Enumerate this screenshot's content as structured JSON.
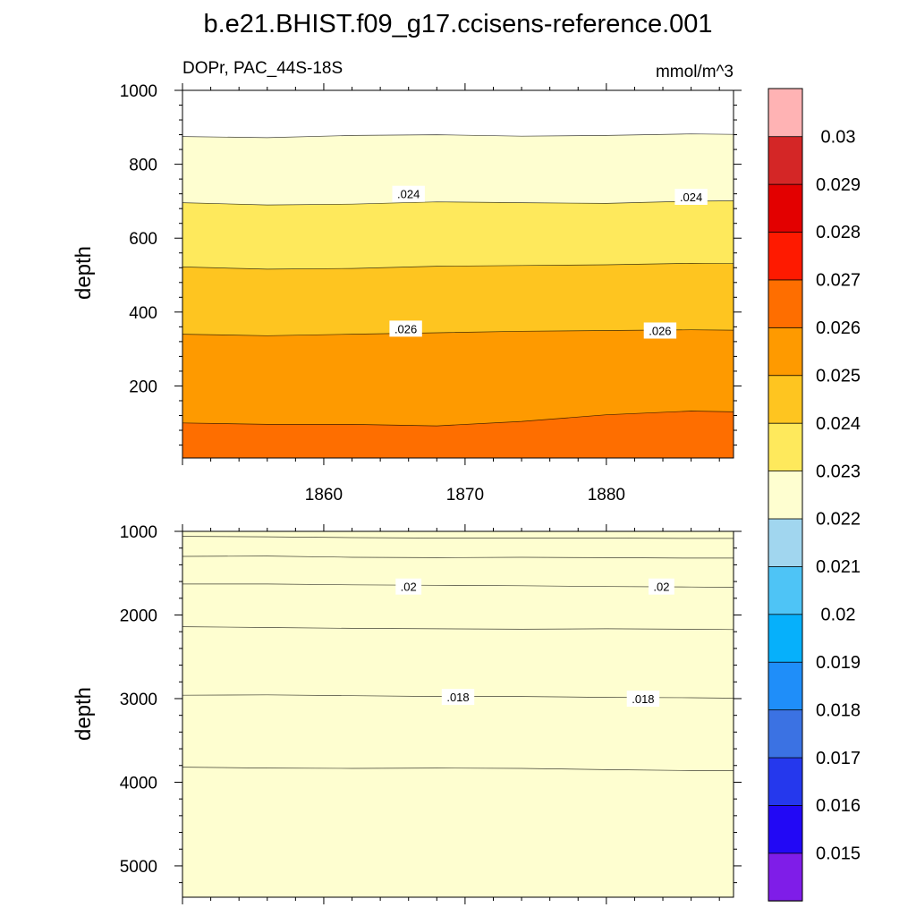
{
  "title": "b.e21.BHIST.f09_g17.ccisens-reference.001",
  "subtitle_left": "DOPr, PAC_44S-18S",
  "subtitle_right": "mmol/m^3",
  "colorbar": {
    "colors": [
      "#7f1de8",
      "#2208f5",
      "#2538ed",
      "#3b72e3",
      "#1f8ef9",
      "#06b0fb",
      "#4ec4f6",
      "#a1d6ef",
      "#fefed0",
      "#fee95c",
      "#fec520",
      "#fe9a00",
      "#fe6e00",
      "#fe1a00",
      "#e30000",
      "#d42626",
      "#ffb3b4"
    ],
    "labels": [
      "0.015",
      "0.016",
      "0.017",
      "0.018",
      "0.019",
      "0.02",
      "0.021",
      "0.022",
      "0.023",
      "0.024",
      "0.025",
      "0.026",
      "0.027",
      "0.028",
      "0.029",
      "0.03"
    ]
  },
  "chart_data": [
    {
      "type": "contour",
      "panel": "upper",
      "xlabel": "",
      "ylabel": "depth",
      "x_ticks": [
        1860,
        1870,
        1880
      ],
      "xlim": [
        1850,
        1889
      ],
      "y_ticks": [
        200,
        400,
        600,
        800,
        1000
      ],
      "ylim": [
        1000,
        5
      ],
      "y_inverted": true,
      "x": [
        1850,
        1856,
        1862,
        1868,
        1874,
        1880,
        1886,
        1889
      ],
      "bands": [
        {
          "color": "#fefed0",
          "value_range": [
            0.022,
            0.023
          ],
          "top": [
            875,
            872,
            878,
            880,
            876,
            878,
            882,
            881
          ]
        },
        {
          "color": "#fee95c",
          "value_range": [
            0.023,
            0.024
          ],
          "top": [
            696,
            690,
            692,
            698,
            696,
            694,
            700,
            701
          ]
        },
        {
          "color": "#fec520",
          "value_range": [
            0.024,
            0.025
          ],
          "top": [
            522,
            516,
            518,
            524,
            526,
            528,
            532,
            531
          ]
        },
        {
          "color": "#fe9a00",
          "value_range": [
            0.025,
            0.026
          ],
          "top": [
            340,
            336,
            340,
            344,
            348,
            350,
            352,
            351
          ]
        },
        {
          "color": "#fe6e00",
          "value_range": [
            0.026,
            0.027
          ],
          "top": [
            100,
            96,
            96,
            92,
            104,
            122,
            132,
            130
          ]
        },
        {
          "color": "#fe1a00",
          "value_range": [
            0.027,
            0.028
          ],
          "top": [
            5,
            5,
            5,
            5,
            5,
            5,
            5,
            5
          ]
        }
      ],
      "contour_labels": [
        {
          "text": ".026",
          "x": 1865.8,
          "y": 355
        },
        {
          "text": ".026",
          "x": 1883.8,
          "y": 350
        },
        {
          "text": ".024",
          "x": 1866.0,
          "y": 720
        },
        {
          "text": ".024",
          "x": 1886.0,
          "y": 712
        }
      ]
    },
    {
      "type": "contour",
      "panel": "lower",
      "xlabel": "",
      "ylabel": "depth",
      "x_ticks": [
        1860,
        1870,
        1880
      ],
      "xlim": [
        1850,
        1889
      ],
      "y_ticks": [
        1000,
        2000,
        3000,
        4000,
        5000
      ],
      "ylim": [
        1000,
        5375
      ],
      "y_inverted": true,
      "x": [
        1850,
        1856,
        1862,
        1868,
        1874,
        1880,
        1886,
        1889
      ],
      "bands": [
        {
          "color": "#2538ed",
          "value_range": [
            0.016,
            0.017
          ],
          "top": [
            3820,
            3830,
            3835,
            3830,
            3835,
            3850,
            3860,
            3860
          ]
        },
        {
          "color": "#3b72e3",
          "value_range": [
            0.017,
            0.018
          ],
          "top": [
            2960,
            2955,
            2965,
            2975,
            2975,
            2985,
            2990,
            2995
          ]
        },
        {
          "color": "#1f8ef9",
          "value_range": [
            0.018,
            0.019
          ],
          "top": [
            2140,
            2150,
            2160,
            2165,
            2170,
            2165,
            2170,
            2175
          ]
        },
        {
          "color": "#06b0fb",
          "value_range": [
            0.019,
            0.02
          ],
          "top": [
            1630,
            1630,
            1640,
            1645,
            1650,
            1660,
            1665,
            1670
          ]
        },
        {
          "color": "#4ec4f6",
          "value_range": [
            0.02,
            0.021
          ],
          "top": [
            1300,
            1295,
            1310,
            1315,
            1310,
            1315,
            1320,
            1320
          ]
        },
        {
          "color": "#a1d6ef",
          "value_range": [
            0.021,
            0.022
          ],
          "top": [
            1060,
            1065,
            1075,
            1080,
            1080,
            1080,
            1085,
            1085
          ]
        },
        {
          "color": "#fefed0",
          "value_range": [
            0.022,
            0.023
          ],
          "top": [
            1000,
            1000,
            1000,
            1000,
            1000,
            1000,
            1000,
            1000
          ]
        }
      ],
      "contour_labels": [
        {
          "text": ".02",
          "x": 1866.0,
          "y": 1660
        },
        {
          "text": ".02",
          "x": 1883.9,
          "y": 1660
        },
        {
          "text": ".018",
          "x": 1869.5,
          "y": 2980
        },
        {
          "text": ".018",
          "x": 1882.6,
          "y": 3000
        }
      ]
    }
  ]
}
